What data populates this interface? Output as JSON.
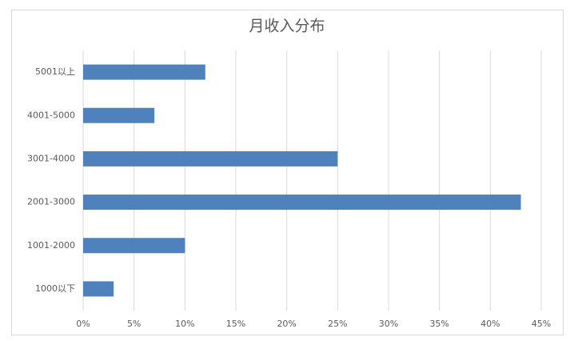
{
  "chart_data": {
    "type": "hbar",
    "title": "月收入分布",
    "categories": [
      "5001以上",
      "4001-5000",
      "3001-4000",
      "2001-3000",
      "1001-2000",
      "1000以下"
    ],
    "values": [
      12,
      7,
      25,
      43,
      10,
      3
    ],
    "color": "#4f81bd",
    "xlim": [
      0,
      45
    ],
    "xticks": [
      {
        "value": 0,
        "label": "0%"
      },
      {
        "value": 5,
        "label": "5%"
      },
      {
        "value": 10,
        "label": "10%"
      },
      {
        "value": 15,
        "label": "15%"
      },
      {
        "value": 20,
        "label": "20%"
      },
      {
        "value": 25,
        "label": "25%"
      },
      {
        "value": 30,
        "label": "30%"
      },
      {
        "value": 35,
        "label": "35%"
      },
      {
        "value": 40,
        "label": "40%"
      },
      {
        "value": 45,
        "label": "45%"
      }
    ],
    "grid": true
  }
}
